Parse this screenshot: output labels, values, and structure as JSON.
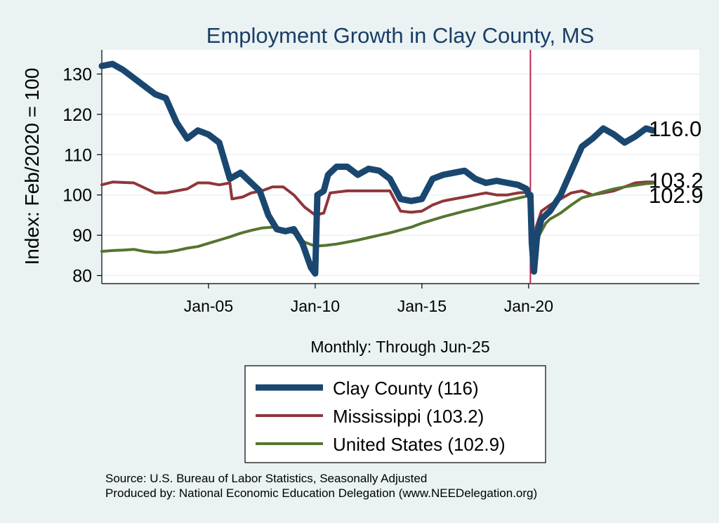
{
  "chart_data": {
    "type": "line",
    "title": "Employment Growth in Clay  County, MS",
    "xlabel": "Monthly: Through Jun-25",
    "ylabel": "Index: Feb/2020 = 100",
    "ylim": [
      78,
      136
    ],
    "xlim": [
      2000.0,
      2028.0
    ],
    "yticks": [
      80,
      90,
      100,
      110,
      120,
      130
    ],
    "xticks": [
      {
        "label": "Jan-05",
        "value": 2005.0
      },
      {
        "label": "Jan-10",
        "value": 2010.0
      },
      {
        "label": "Jan-15",
        "value": 2015.0
      },
      {
        "label": "Jan-20",
        "value": 2020.0
      }
    ],
    "vline": {
      "x": 2020.083,
      "color": "#c0264e"
    },
    "series": [
      {
        "name": "Clay  County",
        "legend_label": "Clay  County (116)",
        "end_label": "116.0",
        "color": "#1a476f",
        "points": [
          [
            2000.0,
            132
          ],
          [
            2000.5,
            132.5
          ],
          [
            2001.0,
            131
          ],
          [
            2001.5,
            129
          ],
          [
            2002.0,
            127
          ],
          [
            2002.5,
            125
          ],
          [
            2003.0,
            124
          ],
          [
            2003.5,
            118
          ],
          [
            2004.0,
            114
          ],
          [
            2004.5,
            116
          ],
          [
            2005.0,
            115
          ],
          [
            2005.5,
            113
          ],
          [
            2006.0,
            104
          ],
          [
            2006.5,
            105.5
          ],
          [
            2007.0,
            103
          ],
          [
            2007.4,
            101
          ],
          [
            2007.8,
            95
          ],
          [
            2008.2,
            91.5
          ],
          [
            2008.6,
            91
          ],
          [
            2009.0,
            91.5
          ],
          [
            2009.4,
            88
          ],
          [
            2009.8,
            82
          ],
          [
            2010.0,
            80.5
          ],
          [
            2010.1,
            100
          ],
          [
            2010.4,
            101
          ],
          [
            2010.6,
            105
          ],
          [
            2011.0,
            107
          ],
          [
            2011.5,
            107
          ],
          [
            2012.0,
            105
          ],
          [
            2012.5,
            106.5
          ],
          [
            2013.0,
            106
          ],
          [
            2013.5,
            104
          ],
          [
            2014.0,
            99
          ],
          [
            2014.5,
            98.5
          ],
          [
            2015.0,
            99
          ],
          [
            2015.5,
            104
          ],
          [
            2016.0,
            105
          ],
          [
            2016.5,
            105.5
          ],
          [
            2017.0,
            106
          ],
          [
            2017.5,
            104
          ],
          [
            2018.0,
            103
          ],
          [
            2018.5,
            103.5
          ],
          [
            2019.0,
            103
          ],
          [
            2019.5,
            102.5
          ],
          [
            2019.9,
            101.5
          ],
          [
            2020.0,
            100
          ],
          [
            2020.083,
            100
          ],
          [
            2020.15,
            88
          ],
          [
            2020.25,
            81
          ],
          [
            2020.4,
            90
          ],
          [
            2020.6,
            94
          ],
          [
            2021.0,
            96
          ],
          [
            2021.5,
            100
          ],
          [
            2022.0,
            106
          ],
          [
            2022.5,
            112
          ],
          [
            2023.0,
            114
          ],
          [
            2023.5,
            116.5
          ],
          [
            2024.0,
            115
          ],
          [
            2024.5,
            113
          ],
          [
            2025.0,
            114.5
          ],
          [
            2025.5,
            116.5
          ],
          [
            2025.83,
            116.0
          ]
        ]
      },
      {
        "name": "Mississippi",
        "legend_label": "Mississippi (103.2)",
        "end_label": "103.2",
        "color": "#90353b",
        "points": [
          [
            2000.0,
            102.5
          ],
          [
            2000.5,
            103.2
          ],
          [
            2001.5,
            103
          ],
          [
            2002.5,
            100.5
          ],
          [
            2003.0,
            100.5
          ],
          [
            2004.0,
            101.5
          ],
          [
            2004.5,
            103
          ],
          [
            2005.0,
            103
          ],
          [
            2005.5,
            102.5
          ],
          [
            2006.0,
            103
          ],
          [
            2006.1,
            99
          ],
          [
            2006.6,
            99.5
          ],
          [
            2007.0,
            100.5
          ],
          [
            2007.5,
            101
          ],
          [
            2008.0,
            102
          ],
          [
            2008.5,
            102
          ],
          [
            2009.0,
            100
          ],
          [
            2009.5,
            97
          ],
          [
            2010.0,
            95
          ],
          [
            2010.4,
            95.5
          ],
          [
            2010.7,
            100.5
          ],
          [
            2011.5,
            101
          ],
          [
            2012.5,
            101
          ],
          [
            2013.5,
            101
          ],
          [
            2014.0,
            96
          ],
          [
            2014.5,
            95.7
          ],
          [
            2015.0,
            96
          ],
          [
            2015.5,
            97.5
          ],
          [
            2016.0,
            98.5
          ],
          [
            2016.5,
            99
          ],
          [
            2017.0,
            99.5
          ],
          [
            2017.5,
            100
          ],
          [
            2018.0,
            100.5
          ],
          [
            2018.5,
            100
          ],
          [
            2019.0,
            100
          ],
          [
            2019.5,
            100.5
          ],
          [
            2020.0,
            100.7
          ],
          [
            2020.083,
            100
          ],
          [
            2020.2,
            86
          ],
          [
            2020.35,
            92
          ],
          [
            2020.6,
            96
          ],
          [
            2021.0,
            97.5
          ],
          [
            2021.5,
            99
          ],
          [
            2022.0,
            100.5
          ],
          [
            2022.5,
            101
          ],
          [
            2023.0,
            100
          ],
          [
            2023.5,
            100.5
          ],
          [
            2024.0,
            101
          ],
          [
            2024.5,
            102
          ],
          [
            2025.0,
            103
          ],
          [
            2025.5,
            103.2
          ],
          [
            2025.83,
            103.2
          ]
        ]
      },
      {
        "name": "United States",
        "legend_label": "United States (102.9)",
        "end_label": "102.9",
        "color": "#55752f",
        "points": [
          [
            2000.0,
            86
          ],
          [
            2000.5,
            86.2
          ],
          [
            2001.0,
            86.3
          ],
          [
            2001.5,
            86.5
          ],
          [
            2002.0,
            86
          ],
          [
            2002.5,
            85.7
          ],
          [
            2003.0,
            85.8
          ],
          [
            2003.5,
            86.2
          ],
          [
            2004.0,
            86.8
          ],
          [
            2004.5,
            87.2
          ],
          [
            2005.0,
            88
          ],
          [
            2005.5,
            88.8
          ],
          [
            2006.0,
            89.6
          ],
          [
            2006.5,
            90.5
          ],
          [
            2007.0,
            91.2
          ],
          [
            2007.5,
            91.8
          ],
          [
            2008.0,
            92
          ],
          [
            2008.5,
            91.6
          ],
          [
            2009.0,
            90.5
          ],
          [
            2009.5,
            88.3
          ],
          [
            2010.0,
            87.3
          ],
          [
            2010.5,
            87.5
          ],
          [
            2011.0,
            87.8
          ],
          [
            2011.5,
            88.3
          ],
          [
            2012.0,
            88.8
          ],
          [
            2012.5,
            89.4
          ],
          [
            2013.0,
            90
          ],
          [
            2013.5,
            90.6
          ],
          [
            2014.0,
            91.3
          ],
          [
            2014.5,
            92
          ],
          [
            2015.0,
            93
          ],
          [
            2015.5,
            93.8
          ],
          [
            2016.0,
            94.6
          ],
          [
            2016.5,
            95.3
          ],
          [
            2017.0,
            96
          ],
          [
            2017.5,
            96.6
          ],
          [
            2018.0,
            97.3
          ],
          [
            2018.5,
            97.9
          ],
          [
            2019.0,
            98.6
          ],
          [
            2019.5,
            99.2
          ],
          [
            2020.0,
            99.8
          ],
          [
            2020.083,
            100
          ],
          [
            2020.2,
            86.5
          ],
          [
            2020.3,
            84.5
          ],
          [
            2020.5,
            90
          ],
          [
            2020.8,
            93
          ],
          [
            2021.0,
            94
          ],
          [
            2021.5,
            95.5
          ],
          [
            2022.0,
            97.5
          ],
          [
            2022.5,
            99.3
          ],
          [
            2023.0,
            100
          ],
          [
            2023.5,
            100.8
          ],
          [
            2024.0,
            101.5
          ],
          [
            2024.5,
            102
          ],
          [
            2025.0,
            102.4
          ],
          [
            2025.5,
            102.8
          ],
          [
            2025.83,
            102.9
          ]
        ]
      }
    ]
  },
  "footer": {
    "source": "Source: U.S. Bureau of Labor Statistics, Seasonally Adjusted",
    "producer": "Produced by: National Economic Education Delegation (www.NEEDelegation.org)"
  }
}
